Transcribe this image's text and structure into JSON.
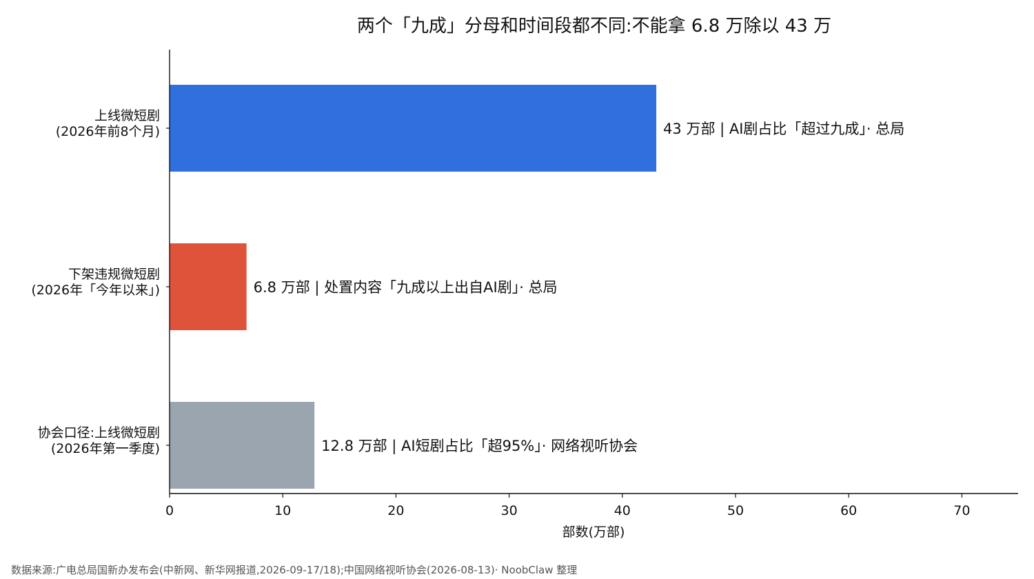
{
  "chart_data": {
    "type": "bar",
    "orientation": "horizontal",
    "title": "两个「九成」分母和时间段都不同:不能拿 6.8 万除以 43 万",
    "xlabel": "部数(万部)",
    "ylabel": "",
    "xlim": [
      0,
      75
    ],
    "xticks": [
      0,
      10,
      20,
      30,
      40,
      50,
      60,
      70
    ],
    "grid": false,
    "categories": [
      [
        "上线微短剧",
        "(2026年前8个月)"
      ],
      [
        "下架违规微短剧",
        "(2026年「今年以来」)"
      ],
      [
        "协会口径:上线微短剧",
        "(2026年第一季度)"
      ]
    ],
    "values": [
      43,
      6.8,
      12.8
    ],
    "colors": [
      "#3070de",
      "#e0533b",
      "#9aa5b0"
    ],
    "data_labels": [
      "43 万部 | AI剧占比「超过九成」· 总局",
      "6.8 万部 | 处置内容「九成以上出自AI剧」· 总局",
      "12.8 万部 | AI短剧占比「超95%」· 网络视听协会"
    ]
  },
  "source_note": "数据来源:广电总局国新办发布会(中新网、新华网报道,2026-09-17/18);中国网络视听协会(2026-08-13)· NoobClaw 整理"
}
